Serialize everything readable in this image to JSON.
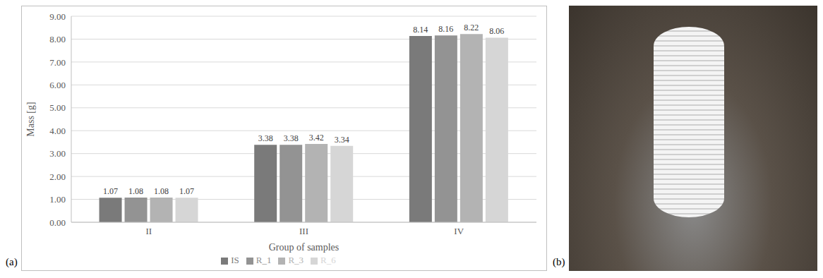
{
  "chart_data": {
    "type": "bar",
    "categories": [
      "II",
      "III",
      "IV"
    ],
    "series": [
      {
        "name": "IS",
        "color": "#7a7a7a",
        "values": [
          1.07,
          3.38,
          8.14
        ]
      },
      {
        "name": "R_1",
        "color": "#939393",
        "values": [
          1.08,
          3.38,
          8.16
        ]
      },
      {
        "name": "R_3",
        "color": "#b3b3b3",
        "values": [
          1.08,
          3.42,
          8.22
        ]
      },
      {
        "name": "R_6",
        "color": "#d6d6d6",
        "values": [
          1.07,
          3.34,
          8.06
        ]
      }
    ],
    "x_label": "Group of samples",
    "y_label": "Mass [g]",
    "ylim": [
      0,
      9
    ],
    "yticks": [
      {
        "value": 0,
        "label": "0.00"
      },
      {
        "value": 1,
        "label": "1.00"
      },
      {
        "value": 2,
        "label": "2.00"
      },
      {
        "value": 3,
        "label": "3.00"
      },
      {
        "value": 4,
        "label": "4.00"
      },
      {
        "value": 5,
        "label": "5.00"
      },
      {
        "value": 6,
        "label": "6.00"
      },
      {
        "value": 7,
        "label": "7.00"
      },
      {
        "value": 8,
        "label": "8.00"
      },
      {
        "value": 9,
        "label": "9.00"
      }
    ],
    "grid": true,
    "legend": "bottom",
    "data_labels": true
  },
  "panel_labels": [
    "(a)",
    "(b)"
  ]
}
